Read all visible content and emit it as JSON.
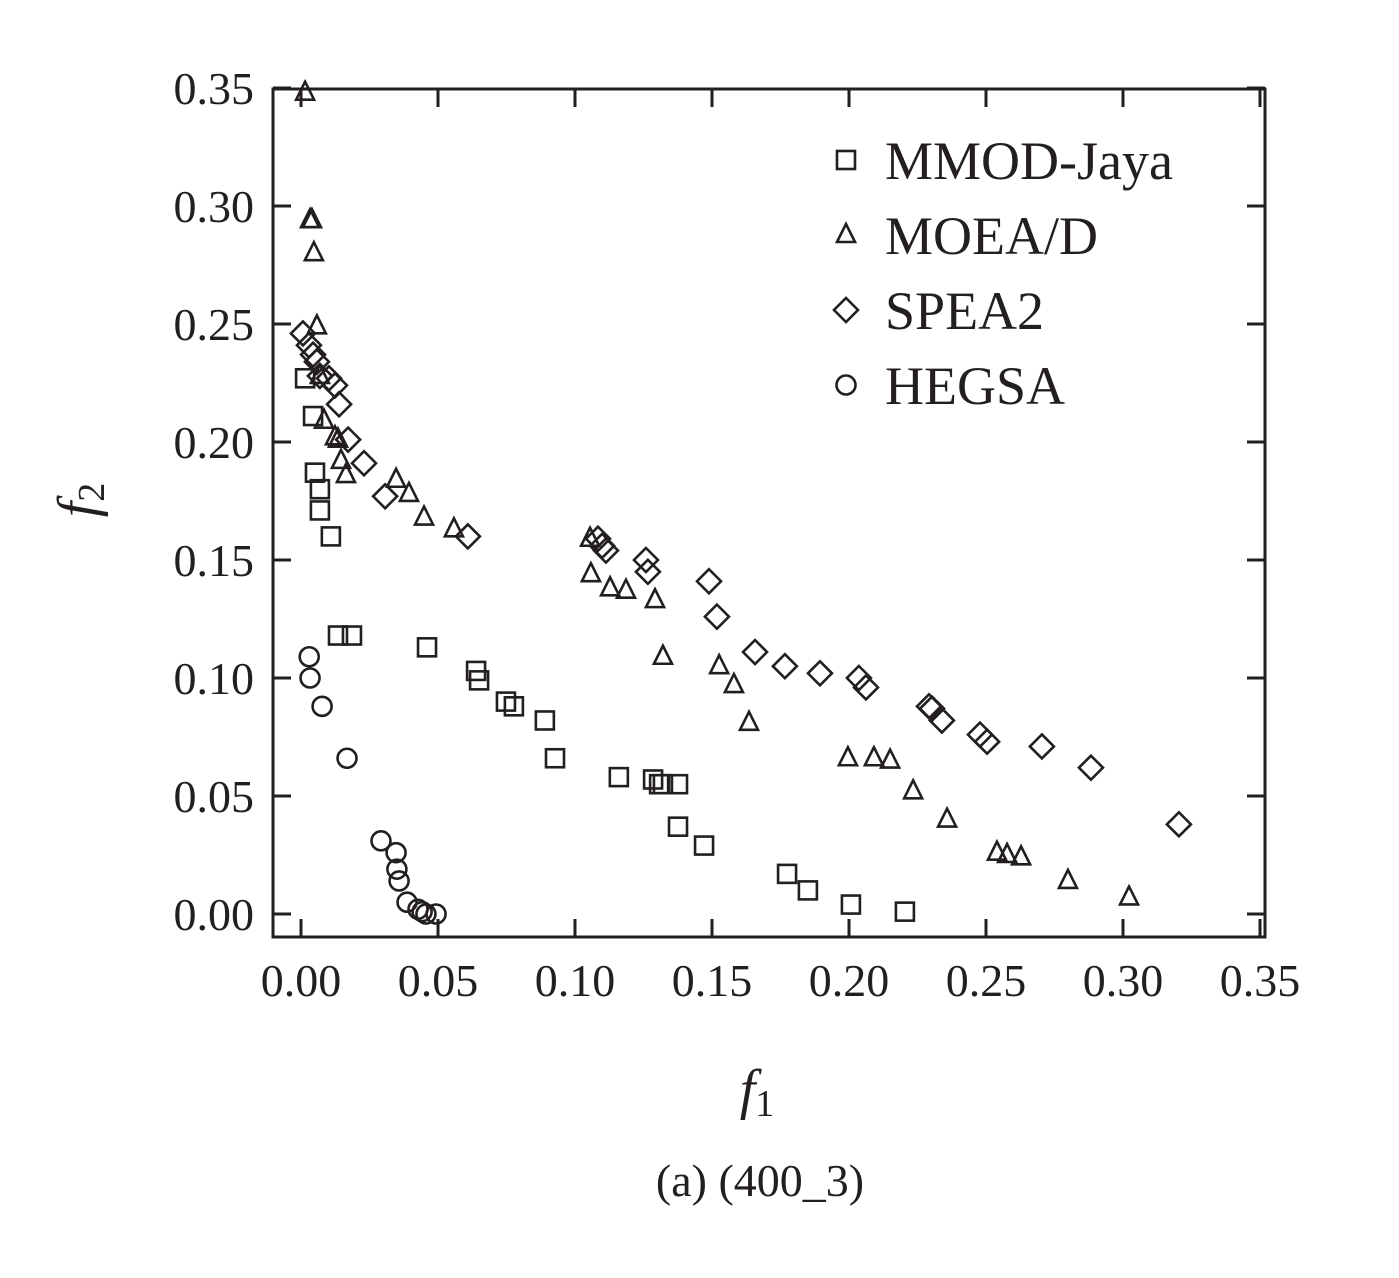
{
  "chart_data": {
    "type": "scatter",
    "title": "",
    "caption": "(a) (400_3)",
    "xlabel": "f",
    "xlabel_sub": "1",
    "ylabel": "f",
    "ylabel_sub": "2",
    "xlim": [
      0,
      0.35
    ],
    "ylim": [
      0,
      0.35
    ],
    "xticks": [
      "0.00",
      "0.05",
      "0.10",
      "0.15",
      "0.20",
      "0.25",
      "0.30",
      "0.35"
    ],
    "yticks": [
      "0.00",
      "0.05",
      "0.10",
      "0.15",
      "0.20",
      "0.25",
      "0.30",
      "0.35"
    ],
    "grid": false,
    "legend_position": "top-right",
    "series": [
      {
        "name": "MMOD-Jaya",
        "marker": "square",
        "x": [
          0.0015,
          0.0044,
          0.0051,
          0.0069,
          0.0069,
          0.0109,
          0.0135,
          0.0186,
          0.046,
          0.0639,
          0.065,
          0.0748,
          0.0777,
          0.089,
          0.0927,
          0.116,
          0.1285,
          0.1307,
          0.1321,
          0.1376,
          0.1376,
          0.1471,
          0.1774,
          0.185,
          0.2007,
          0.2204
        ],
        "y": [
          0.227,
          0.211,
          0.187,
          0.18,
          0.171,
          0.16,
          0.118,
          0.118,
          0.113,
          0.103,
          0.099,
          0.09,
          0.088,
          0.082,
          0.066,
          0.058,
          0.057,
          0.055,
          0.055,
          0.055,
          0.037,
          0.029,
          0.017,
          0.01,
          0.004,
          0.001
        ]
      },
      {
        "name": "MOEA/D",
        "marker": "triangle",
        "x": [
          0.0015,
          0.0033,
          0.004,
          0.0047,
          0.0058,
          0.0069,
          0.0084,
          0.0124,
          0.0135,
          0.0146,
          0.0164,
          0.0347,
          0.0394,
          0.0449,
          0.0558,
          0.1055,
          0.1058,
          0.1128,
          0.1186,
          0.1292,
          0.1321,
          0.1526,
          0.158,
          0.1635,
          0.1996,
          0.2091,
          0.215,
          0.2234,
          0.2358,
          0.254,
          0.2577,
          0.2628,
          0.2799,
          0.3022
        ],
        "y": [
          0.348,
          0.294,
          0.294,
          0.28,
          0.249,
          0.228,
          0.209,
          0.202,
          0.201,
          0.192,
          0.186,
          0.184,
          0.178,
          0.168,
          0.163,
          0.159,
          0.144,
          0.138,
          0.137,
          0.133,
          0.109,
          0.105,
          0.097,
          0.081,
          0.066,
          0.066,
          0.065,
          0.052,
          0.04,
          0.026,
          0.025,
          0.024,
          0.014,
          0.007
        ]
      },
      {
        "name": "SPEA2",
        "marker": "diamond",
        "x": [
          0.0007,
          0.0029,
          0.0044,
          0.0058,
          0.0069,
          0.0102,
          0.0124,
          0.0139,
          0.0172,
          0.023,
          0.0307,
          0.0609,
          0.1084,
          0.1099,
          0.1113,
          0.1259,
          0.1266,
          0.1489,
          0.1518,
          0.1657,
          0.1766,
          0.1894,
          0.2036,
          0.2062,
          0.2292,
          0.2303,
          0.2339,
          0.2478,
          0.2504,
          0.2704,
          0.2883,
          0.3204
        ],
        "y": [
          0.246,
          0.241,
          0.237,
          0.234,
          0.228,
          0.227,
          0.224,
          0.216,
          0.201,
          0.191,
          0.177,
          0.16,
          0.159,
          0.156,
          0.154,
          0.15,
          0.145,
          0.141,
          0.126,
          0.111,
          0.105,
          0.102,
          0.1,
          0.096,
          0.088,
          0.087,
          0.082,
          0.076,
          0.073,
          0.071,
          0.062,
          0.038
        ]
      },
      {
        "name": "HEGSA",
        "marker": "circle",
        "x": [
          0.003,
          0.0033,
          0.0077,
          0.0168,
          0.0292,
          0.0347,
          0.035,
          0.0358,
          0.0387,
          0.0427,
          0.0442,
          0.0456,
          0.0493
        ],
        "y": [
          0.109,
          0.1,
          0.088,
          0.066,
          0.031,
          0.026,
          0.019,
          0.014,
          0.005,
          0.002,
          0.001,
          0.0,
          0.0
        ]
      }
    ],
    "colors": {
      "ink": "#231f20"
    }
  }
}
